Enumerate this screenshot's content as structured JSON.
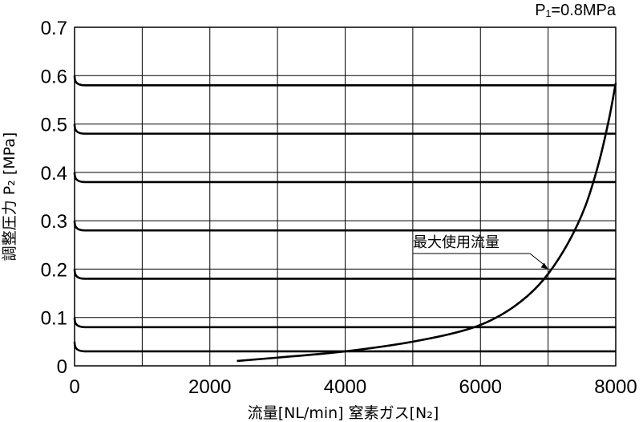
{
  "chart_data": {
    "type": "line",
    "title": "",
    "condition_label": "P₁=0.8MPa",
    "xlabel": "流量[NL/min]  窒素ガス[N₂]",
    "ylabel": "調整圧力 P₂ [MPa]",
    "xlim": [
      0,
      8000
    ],
    "ylim": [
      0,
      0.7
    ],
    "x_ticks": [
      0,
      2000,
      4000,
      6000,
      8000
    ],
    "x_grid_step": 1000,
    "y_ticks": [
      0,
      0.1,
      0.2,
      0.3,
      0.4,
      0.5,
      0.6,
      0.7
    ],
    "grid": true,
    "series": [
      {
        "x": [
          0,
          150,
          8000
        ],
        "y": [
          0.05,
          0.03,
          0.03
        ]
      },
      {
        "x": [
          0,
          150,
          8000
        ],
        "y": [
          0.1,
          0.08,
          0.08
        ]
      },
      {
        "x": [
          0,
          150,
          8000
        ],
        "y": [
          0.2,
          0.18,
          0.18
        ]
      },
      {
        "x": [
          0,
          150,
          8000
        ],
        "y": [
          0.3,
          0.28,
          0.28
        ]
      },
      {
        "x": [
          0,
          150,
          8000
        ],
        "y": [
          0.4,
          0.38,
          0.38
        ]
      },
      {
        "x": [
          0,
          150,
          8000
        ],
        "y": [
          0.5,
          0.48,
          0.48
        ]
      },
      {
        "x": [
          0,
          150,
          8000
        ],
        "y": [
          0.6,
          0.58,
          0.58
        ]
      }
    ],
    "max_flow_curve": {
      "name": "最大使用流量",
      "x": [
        2400,
        3000,
        4000,
        5000,
        5800,
        6300,
        6700,
        7000,
        7300,
        7550,
        7750,
        7900,
        8000
      ],
      "y": [
        0.01,
        0.017,
        0.03,
        0.05,
        0.075,
        0.105,
        0.145,
        0.19,
        0.255,
        0.33,
        0.42,
        0.51,
        0.585
      ]
    },
    "annotations": [
      {
        "text": "最大使用流量",
        "target": [
          7000,
          0.19
        ]
      }
    ]
  }
}
